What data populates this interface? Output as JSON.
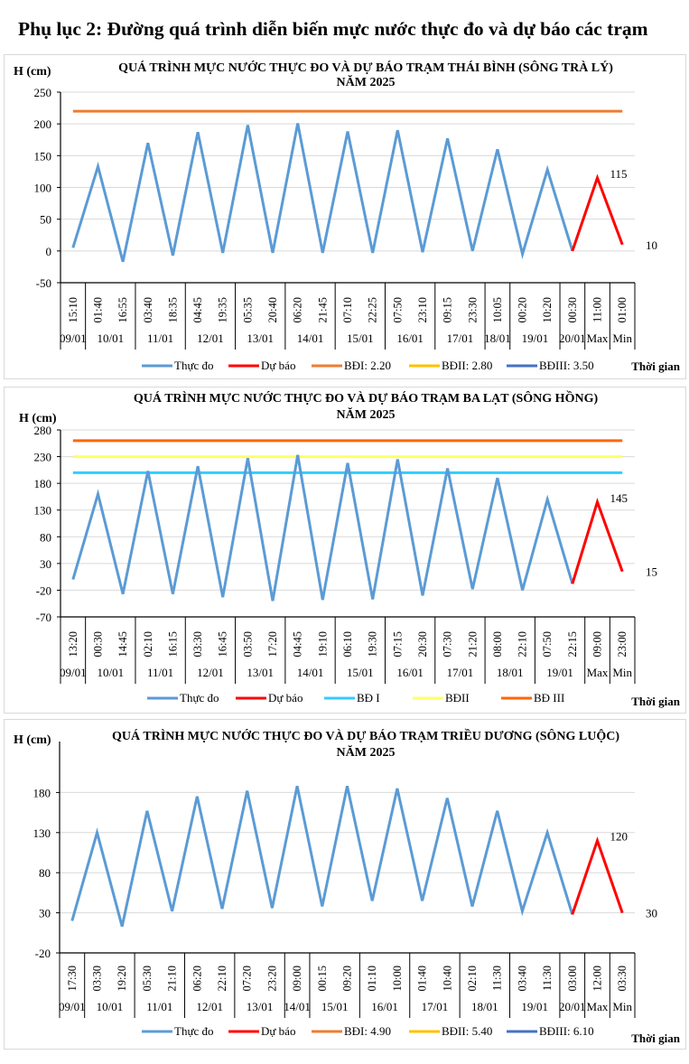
{
  "page": {
    "title": "Phụ lục 2: Đường quá trình diễn biến mực nước thực đo và dự báo các trạm"
  },
  "colors": {
    "observed": "#5B9BD5",
    "forecast": "#FF0000",
    "grid": "#D9D9D9",
    "axis": "#000000"
  },
  "chart_data": [
    {
      "type": "line",
      "title": "QUÁ TRÌNH MỰC NƯỚC THỰC ĐO VÀ DỰ BÁO TRẠM THÁI BÌNH (SÔNG TRÀ LÝ)",
      "subtitle": "NĂM 2025",
      "ylabel": "H (cm)",
      "xlabel": "Thời gian",
      "ylim": [
        -50,
        250
      ],
      "yticks": [
        250,
        200,
        150,
        100,
        50,
        0,
        -50
      ],
      "grid": true,
      "legend": "bottom",
      "times": [
        "15:10",
        "01:40",
        "16:55",
        "03:40",
        "18:35",
        "04:45",
        "19:35",
        "05:35",
        "20:40",
        "06:20",
        "21:45",
        "07:10",
        "22:25",
        "07:50",
        "23:10",
        "09:15",
        "23:30",
        "10:05",
        "00:20",
        "10:20",
        "00:30",
        "11:00",
        "01:00"
      ],
      "groups": [
        {
          "label": "09/01",
          "count": 1
        },
        {
          "label": "10/01",
          "count": 2
        },
        {
          "label": "11/01",
          "count": 2
        },
        {
          "label": "12/01",
          "count": 2
        },
        {
          "label": "13/01",
          "count": 2
        },
        {
          "label": "14/01",
          "count": 2
        },
        {
          "label": "15/01",
          "count": 2
        },
        {
          "label": "16/01",
          "count": 2
        },
        {
          "label": "17/01",
          "count": 2
        },
        {
          "label": "18/01",
          "count": 1
        },
        {
          "label": "19/01",
          "count": 2
        },
        {
          "label": "20/01",
          "count": 1
        },
        {
          "label": "Max",
          "count": 1
        },
        {
          "label": "Min",
          "count": 1
        }
      ],
      "series": [
        {
          "name": "Thực đo",
          "color": "#5B9BD5",
          "start": 0,
          "values": [
            5,
            133,
            -17,
            170,
            -7,
            187,
            -3,
            198,
            -3,
            201,
            -3,
            188,
            -3,
            190,
            -2,
            177,
            0,
            160,
            -5,
            128,
            0
          ]
        },
        {
          "name": "Dự báo",
          "color": "#FF0000",
          "start": 20,
          "values": [
            0,
            115,
            10
          ]
        }
      ],
      "ref_lines": [
        {
          "name": "BĐI: 2.20",
          "color": "#ED7D31",
          "value": 220,
          "shown": true
        },
        {
          "name": "BĐII: 2.80",
          "color": "#FFC000",
          "value": null,
          "shown": false
        },
        {
          "name": "BĐIII: 3.50",
          "color": "#4472C4",
          "value": null,
          "shown": false
        }
      ],
      "annotations": [
        {
          "index": 21,
          "value": 115,
          "text": "115"
        },
        {
          "index": 22,
          "value": 10,
          "text": "10"
        }
      ]
    },
    {
      "type": "line",
      "title": "QUÁ TRÌNH MỰC NƯỚC THỰC ĐO VÀ DỰ BÁO TRẠM BA LẠT (SÔNG HỒNG)",
      "subtitle": "NĂM 2025",
      "ylabel": "H (cm)",
      "xlabel": "Thời gian",
      "ylim": [
        -70,
        280
      ],
      "yticks": [
        280,
        230,
        180,
        130,
        80,
        30,
        -20,
        -70
      ],
      "grid": true,
      "legend": "bottom",
      "times": [
        "13:20",
        "00:30",
        "14:45",
        "02:10",
        "16:15",
        "03:30",
        "16:45",
        "03:50",
        "17:20",
        "04:45",
        "19:10",
        "06:10",
        "19:30",
        "07:15",
        "20:30",
        "07:30",
        "21:20",
        "08:00",
        "22:10",
        "07:50",
        "22:15",
        "09:00",
        "23:00"
      ],
      "groups": [
        {
          "label": "09/01",
          "count": 1
        },
        {
          "label": "10/01",
          "count": 2
        },
        {
          "label": "11/01",
          "count": 2
        },
        {
          "label": "12/01",
          "count": 2
        },
        {
          "label": "13/01",
          "count": 2
        },
        {
          "label": "14/01",
          "count": 2
        },
        {
          "label": "15/01",
          "count": 2
        },
        {
          "label": "16/01",
          "count": 2
        },
        {
          "label": "17/01",
          "count": 2
        },
        {
          "label": "18/01",
          "count": 2
        },
        {
          "label": "19/01",
          "count": 2
        },
        {
          "label": "Max",
          "count": 1
        },
        {
          "label": "Min",
          "count": 1
        }
      ],
      "series": [
        {
          "name": "Thực đo",
          "color": "#5B9BD5",
          "start": 0,
          "values": [
            0,
            160,
            -27,
            203,
            -27,
            212,
            -33,
            227,
            -40,
            233,
            -38,
            218,
            -37,
            225,
            -30,
            208,
            -18,
            190,
            -20,
            150,
            -8
          ]
        },
        {
          "name": "Dự báo",
          "color": "#FF0000",
          "start": 20,
          "values": [
            -8,
            145,
            15
          ]
        }
      ],
      "ref_lines": [
        {
          "name": "BĐ I",
          "color": "#33CCFF",
          "value": 200,
          "shown": true
        },
        {
          "name": "BĐII",
          "color": "#FFFF66",
          "value": 230,
          "shown": true
        },
        {
          "name": "BĐ III",
          "color": "#FF6600",
          "value": 260,
          "shown": true
        }
      ],
      "annotations": [
        {
          "index": 21,
          "value": 145,
          "text": "145"
        },
        {
          "index": 22,
          "value": 15,
          "text": "15"
        }
      ]
    },
    {
      "type": "line",
      "title": "QUÁ TRÌNH MỰC NƯỚC THỰC ĐO VÀ DỰ BÁO TRẠM TRIỀU DƯƠNG (SÔNG LUỘC)",
      "subtitle": "NĂM 2025",
      "ylabel": "H (cm)",
      "xlabel": "Thời gian",
      "ylim": [
        -20,
        230
      ],
      "yticks": [
        180,
        130,
        80,
        30,
        -20
      ],
      "grid": true,
      "legend": "bottom",
      "times": [
        "17:30",
        "03:30",
        "19:20",
        "05:30",
        "21:10",
        "06:20",
        "22:10",
        "07:20",
        "23:20",
        "09:00",
        "00:15",
        "09:20",
        "01:10",
        "10:00",
        "01:40",
        "10:40",
        "02:10",
        "11:30",
        "03:40",
        "11:30",
        "03:00",
        "12:00",
        "03:30"
      ],
      "groups": [
        {
          "label": "09/01",
          "count": 1
        },
        {
          "label": "10/01",
          "count": 2
        },
        {
          "label": "11/01",
          "count": 2
        },
        {
          "label": "12/01",
          "count": 2
        },
        {
          "label": "13/01",
          "count": 2
        },
        {
          "label": "14/01",
          "count": 1
        },
        {
          "label": "15/01",
          "count": 2
        },
        {
          "label": "16/01",
          "count": 2
        },
        {
          "label": "17/01",
          "count": 2
        },
        {
          "label": "18/01",
          "count": 2
        },
        {
          "label": "19/01",
          "count": 2
        },
        {
          "label": "20/01",
          "count": 1
        },
        {
          "label": "Max",
          "count": 1
        },
        {
          "label": "Min",
          "count": 1
        }
      ],
      "series": [
        {
          "name": "Thực đo",
          "color": "#5B9BD5",
          "start": 0,
          "values": [
            20,
            130,
            13,
            157,
            32,
            175,
            35,
            182,
            36,
            188,
            38,
            188,
            45,
            185,
            45,
            173,
            38,
            157,
            32,
            130,
            28
          ]
        },
        {
          "name": "Dự báo",
          "color": "#FF0000",
          "start": 20,
          "values": [
            28,
            120,
            30
          ]
        }
      ],
      "ref_lines": [
        {
          "name": "BĐI: 4.90",
          "color": "#ED7D31",
          "value": null,
          "shown": false
        },
        {
          "name": "BĐII: 5.40",
          "color": "#FFC000",
          "value": null,
          "shown": false
        },
        {
          "name": "BĐIII: 6.10",
          "color": "#4472C4",
          "value": null,
          "shown": false
        }
      ],
      "annotations": [
        {
          "index": 21,
          "value": 120,
          "text": "120"
        },
        {
          "index": 22,
          "value": 30,
          "text": "30"
        }
      ]
    }
  ]
}
